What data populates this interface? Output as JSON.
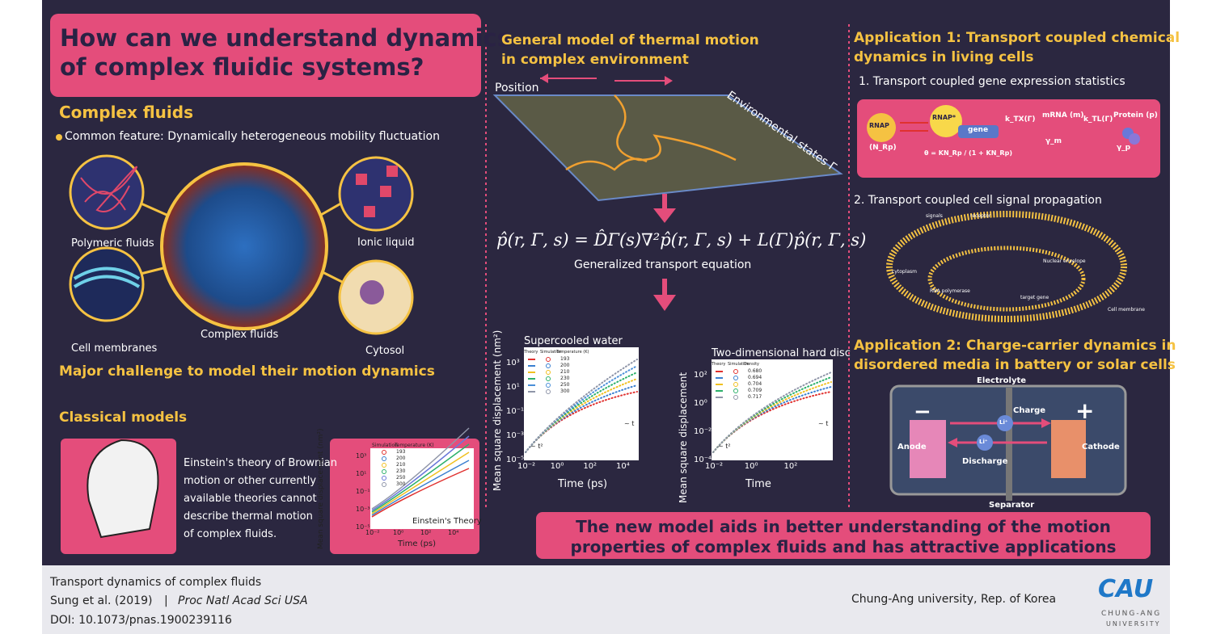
{
  "header": {
    "title": [
      "How can we understand dynamics",
      "of complex fluidic systems?"
    ]
  },
  "left": {
    "heading": "Complex fluids",
    "feature": "Common feature: Dynamically heterogeneous mobility fluctuation",
    "labels": [
      "Polymeric fluids",
      "Ionic liquid",
      "Complex fluids",
      "Cell membranes",
      "Cytosol"
    ],
    "challenge": "Major challenge to model their motion dynamics",
    "classical_heading": "Classical models",
    "classical_text": [
      "Einstein's theory of Brownian",
      "motion or other currently",
      "available theories cannot",
      "describe thermal motion",
      "of complex fluids."
    ],
    "inset": {
      "y_label": "Mean square displacement (nm²)",
      "x_label": "Time (ps)",
      "annotation": "Einstein's Theory",
      "legend_headers": [
        "Simulation",
        "Temperature (K)"
      ],
      "legend": [
        "193",
        "200",
        "210",
        "230",
        "250",
        "300"
      ],
      "colors": [
        "#e0312f",
        "#3a7fd0",
        "#f0c020",
        "#2cb06a",
        "#6a78d8",
        "#8f95a8"
      ],
      "yticks": [
        "10³",
        "10¹",
        "10⁻¹",
        "10⁻³",
        "10⁻⁵"
      ],
      "xticks": [
        "10⁻²",
        "10⁰",
        "10²",
        "10⁴"
      ]
    }
  },
  "middle": {
    "title": [
      "General model of thermal motion",
      "in complex environment"
    ],
    "position": "Position",
    "environment": "Environmental states Γ",
    "equation": "p̂(r, Γ, s) = D̂Γ(s)∇²p̂(r, Γ, s) + L(Γ)p̂(r, Γ, s)",
    "equation_label": "Generalized transport equation",
    "plots": [
      {
        "title": "Supercooled water",
        "y_label": "Mean square displacement (nm²)",
        "x_label": "Time (ps)",
        "legend_headers": [
          "Theory",
          "Simulation",
          "Temperature (K)"
        ],
        "legend": [
          "193",
          "200",
          "210",
          "230",
          "250",
          "300"
        ],
        "colors": [
          "#e0312f",
          "#3a7fd0",
          "#f0c020",
          "#2cb06a",
          "#4a8fd8",
          "#8f95a8"
        ],
        "yticks": [
          "10³",
          "10¹",
          "10⁻¹",
          "10⁻³",
          "10⁻⁵"
        ],
        "xticks": [
          "10⁻²",
          "10⁰",
          "10²",
          "10⁴"
        ],
        "annotations": [
          "~ t²",
          "~ t"
        ]
      },
      {
        "title": "Two-dimensional hard disc",
        "y_label": "Mean square displacement",
        "x_label": "Time",
        "legend_headers": [
          "Theory",
          "Simulation",
          "Density"
        ],
        "legend": [
          "0.680",
          "0.694",
          "0.704",
          "0.709",
          "0.717"
        ],
        "colors": [
          "#e0312f",
          "#3a7fd0",
          "#f0c020",
          "#2cb06a",
          "#8f95a8"
        ],
        "yticks": [
          "10²",
          "10⁰",
          "10⁻²",
          "10⁻⁴"
        ],
        "xticks": [
          "10⁻²",
          "10⁰",
          "10²"
        ],
        "annotations": [
          "~ t²",
          "~ t"
        ]
      }
    ]
  },
  "right": {
    "app1": [
      "Application 1: Transport coupled chemical",
      "dynamics in living cells"
    ],
    "item1": "1. Transport coupled gene expression statistics",
    "gene": {
      "rnap": "RNAP",
      "rnap_star": "RNAP*",
      "gene": "gene",
      "n": "(N_Rp)",
      "ktx": "k_TX(Γ)",
      "mrna": "mRNA (m)",
      "gm": "γ_m",
      "ktl": "k_TL(Γ)",
      "protein": "Protein (p)",
      "gp": "γ_p",
      "theta": "θ = KN_Rp / (1 + KN_Rp)"
    },
    "item2": "2. Transport coupled cell signal propagation",
    "cell": [
      "signals",
      "receptor",
      "cytoplasm",
      "Nuclear envelope",
      "RNA polymerase",
      "target gene",
      "Cell membrane"
    ],
    "app2": [
      "Application 2: Charge-carrier dynamics in",
      "disordered media in battery or solar cells"
    ],
    "battery": {
      "electrolyte": "Electrolyte",
      "charge": "Charge",
      "discharge": "Discharge",
      "anode": "Anode",
      "cathode": "Cathode",
      "separator": "Separator",
      "ion1": "Li⁺",
      "ion2": "Li⁺",
      "minus": "−",
      "plus": "+"
    }
  },
  "banner": [
    "The new model aids in better understanding of the motion",
    "properties of complex fluids and has attractive applications"
  ],
  "footer": {
    "title": "Transport dynamics of complex fluids",
    "authors": "Sung et al. (2019)",
    "separator": "|",
    "journal": "Proc Natl Acad Sci USA",
    "doi": "DOI: 10.1073/pnas.1900239116",
    "affiliation": "Chung-Ang university, Rep. of Korea",
    "logo": "CAU",
    "logo_line1": "CHUNG-ANG",
    "logo_line2": "UNIVERSITY"
  }
}
